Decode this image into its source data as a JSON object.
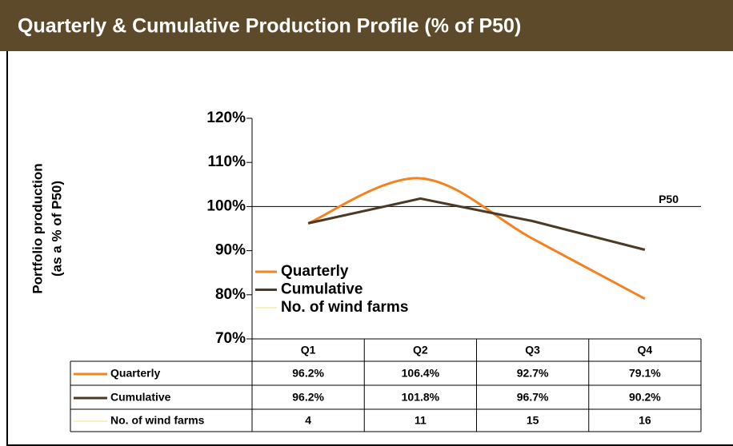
{
  "chart_data": {
    "type": "line",
    "title": "Quarterly & Cumulative Production Profile (% of P50)",
    "y_label": [
      "Portfolio production",
      "(as a % of P50)"
    ],
    "categories": [
      "Q1",
      "Q2",
      "Q3",
      "Q4"
    ],
    "series": [
      {
        "name": "Quarterly",
        "color": "#f58220",
        "smooth": true,
        "values": [
          96.2,
          106.4,
          92.7,
          79.1
        ],
        "value_labels": [
          "96.2%",
          "106.4%",
          "92.7%",
          "79.1%"
        ]
      },
      {
        "name": "Cumulative",
        "color": "#4b3a26",
        "smooth": false,
        "values": [
          96.2,
          101.8,
          96.7,
          90.2
        ],
        "value_labels": [
          "96.2%",
          "101.8%",
          "96.7%",
          "90.2%"
        ]
      },
      {
        "name": "No. of wind farms",
        "color": "#f3e27a",
        "plotted": false,
        "values": [
          4,
          11,
          15,
          16
        ]
      }
    ],
    "reference_line": {
      "value": 100,
      "label": "P50"
    },
    "ylim": [
      70,
      120
    ],
    "yticks": [
      {
        "value": 70,
        "label": "70%"
      },
      {
        "value": 80,
        "label": "80%"
      },
      {
        "value": 90,
        "label": "90%"
      },
      {
        "value": 100,
        "label": "100%"
      },
      {
        "value": 110,
        "label": "110%"
      },
      {
        "value": 120,
        "label": "120%"
      }
    ],
    "legend": "lower left"
  }
}
